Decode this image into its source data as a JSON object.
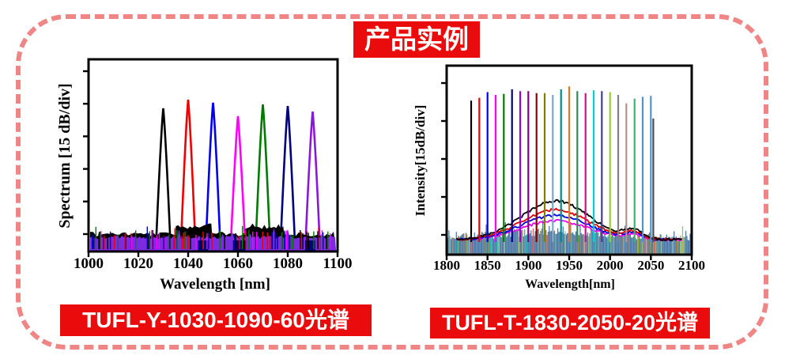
{
  "page": {
    "title_badge": "产品实例",
    "border_color": "#ef8585",
    "accent_red": "#ea0c0c"
  },
  "chart_data": [
    {
      "type": "line",
      "id": "left",
      "caption": "TUFL-Y-1030-1090-60光谱",
      "xlabel": "Wavelength [nm]",
      "ylabel": "Spectrum [15 dB/div]",
      "xlim": [
        1000,
        1100
      ],
      "x_ticks": [
        1000,
        1020,
        1040,
        1060,
        1080,
        1100
      ],
      "y_axis_style": "unlabeled divisions, 15 dB per division",
      "peaks": {
        "wavelengths_nm": [
          1030,
          1040,
          1050,
          1060,
          1070,
          1080,
          1090
        ],
        "colors": [
          "#000000",
          "#ee0000",
          "#0000ee",
          "#ff00ff",
          "#007a00",
          "#000080",
          "#8b17d9"
        ],
        "height_frac": [
          0.745,
          0.79,
          0.774,
          0.704,
          0.765,
          0.757,
          0.728
        ],
        "halfwidth_nm": 2.3
      },
      "noise": {
        "base_color": "#7c2be0",
        "blob_color": "#000000",
        "blobs_nm": [
          [
            1035,
            1050
          ],
          [
            1063,
            1079
          ]
        ],
        "patch_color": "#000080",
        "patches_nm": [
          [
            1044,
            1048
          ],
          [
            1058,
            1063
          ],
          [
            1087,
            1091
          ]
        ],
        "spike_colors": [
          "#ee0000",
          "#007a00",
          "#0000aa",
          "#ff00ff",
          "#000000"
        ]
      }
    },
    {
      "type": "line",
      "id": "right",
      "caption": "TUFL-T-1830-2050-20光谱",
      "xlabel": "Wavelength[nm]",
      "ylabel": "Intensity[15dB/div]",
      "xlim": [
        1800,
        2100
      ],
      "x_ticks": [
        1800,
        1850,
        1900,
        1950,
        2000,
        2050,
        2100
      ],
      "y_axis_style": "unlabeled divisions, 15 dB per division",
      "peaks": {
        "wavelengths_nm": [
          1830,
          1840,
          1850,
          1860,
          1870,
          1880,
          1890,
          1900,
          1910,
          1920,
          1930,
          1940,
          1950,
          1960,
          1970,
          1980,
          1990,
          2000,
          2010,
          2020,
          2030,
          2040,
          2050,
          2053
        ],
        "colors": [
          "#000000",
          "#ee0000",
          "#0000ee",
          "#ff00ff",
          "#007a00",
          "#000080",
          "#9400d3",
          "#800080",
          "#8b0000",
          "#808000",
          "#7ba7cc",
          "#008b8b",
          "#e07820",
          "#2e8b57",
          "#c71585",
          "#00ced1",
          "#483d8b",
          "#9acd32",
          "#808080",
          "#bc8f8f",
          "#3cb371",
          "#4f94cd",
          "#4f94cd",
          "#44505f"
        ],
        "height_frac": [
          0.815,
          0.83,
          0.86,
          0.845,
          0.85,
          0.875,
          0.865,
          0.865,
          0.855,
          0.855,
          0.845,
          0.875,
          0.89,
          0.865,
          0.855,
          0.87,
          0.865,
          0.86,
          0.845,
          0.8,
          0.825,
          0.835,
          0.84,
          0.72
        ]
      },
      "ase_humps": {
        "center_nm": 1933,
        "sigma_nm": 58,
        "bump2_nm": 2028,
        "bump2_sigma_nm": 16,
        "bump2_scale": 0.22,
        "series": [
          {
            "color": "#ee00ee",
            "height_frac": 0.1
          },
          {
            "color": "#0000e0",
            "height_frac": 0.128
          },
          {
            "color": "#e00000",
            "height_frac": 0.158
          },
          {
            "color": "#000000",
            "height_frac": 0.205
          }
        ]
      },
      "noise": {
        "base_color": "#4b79a8",
        "streak_colors": [
          "#6b8e23",
          "#20b2aa",
          "#cd5c5c",
          "#b8860b",
          "#5f9ea0",
          "#8fbc8f",
          "#9aa94f",
          "#777777"
        ]
      }
    }
  ]
}
